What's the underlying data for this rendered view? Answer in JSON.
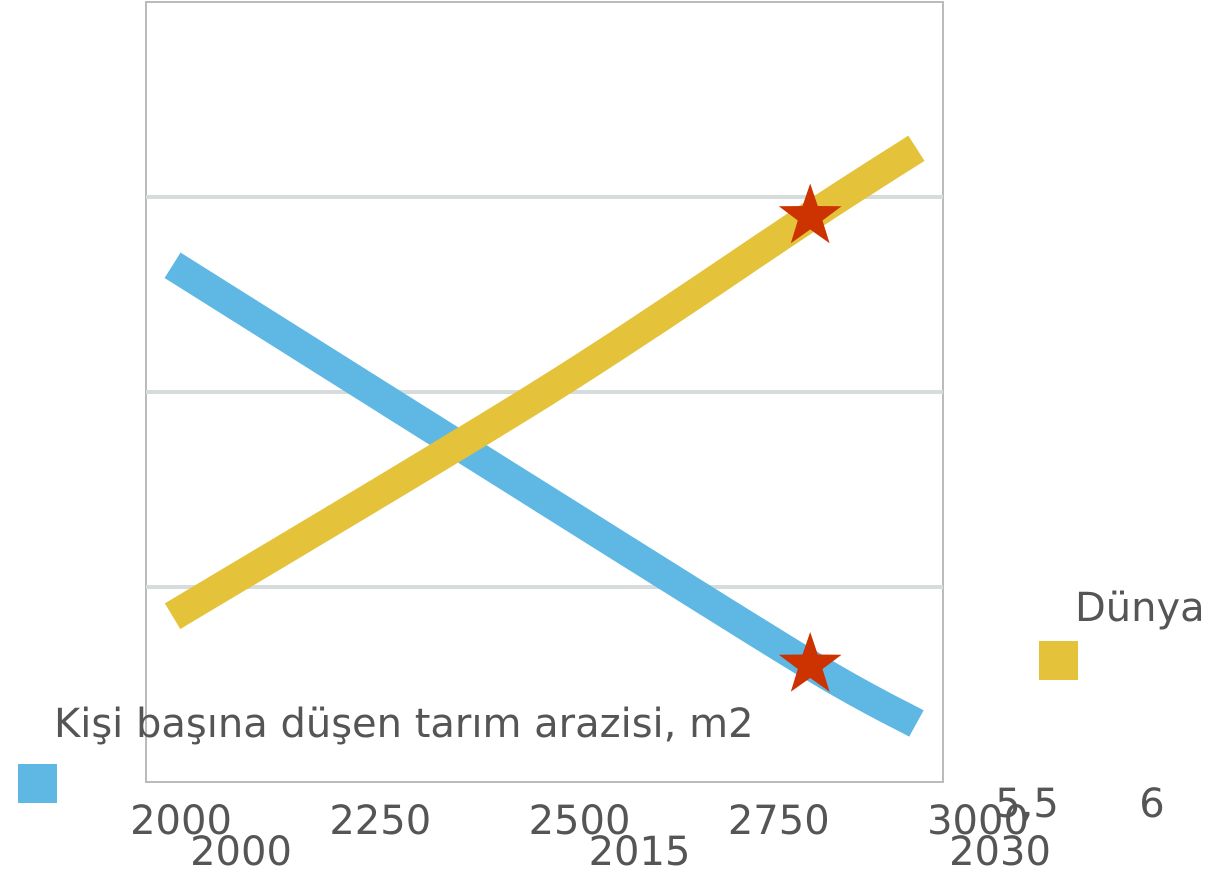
{
  "chart_data": {
    "type": "line",
    "title": "",
    "x_axis_bottom_top_row": {
      "ticks": [
        "2000",
        "2250",
        "2500",
        "2750",
        "3000"
      ],
      "range": [
        2000,
        3000
      ]
    },
    "x_axis_bottom_bottom_row": {
      "ticks": [
        "2000",
        "2015",
        "2030"
      ],
      "range": [
        2000,
        2030
      ]
    },
    "x_axis_right_ticks": [
      "5,5",
      "6"
    ],
    "ylim": [
      0,
      4
    ],
    "grid": true,
    "series": [
      {
        "name": "Kişi başına düşen tarım arazisi, m2",
        "color": "#5fb8e4",
        "points": [
          {
            "x": 2001,
            "y": 2.65
          },
          {
            "x": 2015,
            "y": 1.45
          },
          {
            "x": 2025,
            "y": 0.6
          },
          {
            "x": 2029,
            "y": 0.3
          }
        ]
      },
      {
        "name": "Dünya",
        "color": "#e4c33a",
        "points": [
          {
            "x": 2001,
            "y": 0.85
          },
          {
            "x": 2015,
            "y": 2.0
          },
          {
            "x": 2025,
            "y": 2.9
          },
          {
            "x": 2029,
            "y": 3.25
          }
        ]
      }
    ],
    "markers": [
      {
        "series": "Kişi başına düşen tarım arazisi, m2",
        "x": 2025,
        "y": 0.6,
        "symbol": "star",
        "color": "#cc3300"
      },
      {
        "series": "Dünya",
        "x": 2025,
        "y": 2.9,
        "symbol": "star",
        "color": "#cc3300"
      }
    ],
    "legend": [
      {
        "label": "Kişi başına düşen tarım arazisi, m2",
        "color": "#5fb8e4",
        "placement": "bottom-left"
      },
      {
        "label": "Dünya",
        "color": "#e4c33a",
        "placement": "right"
      }
    ]
  }
}
